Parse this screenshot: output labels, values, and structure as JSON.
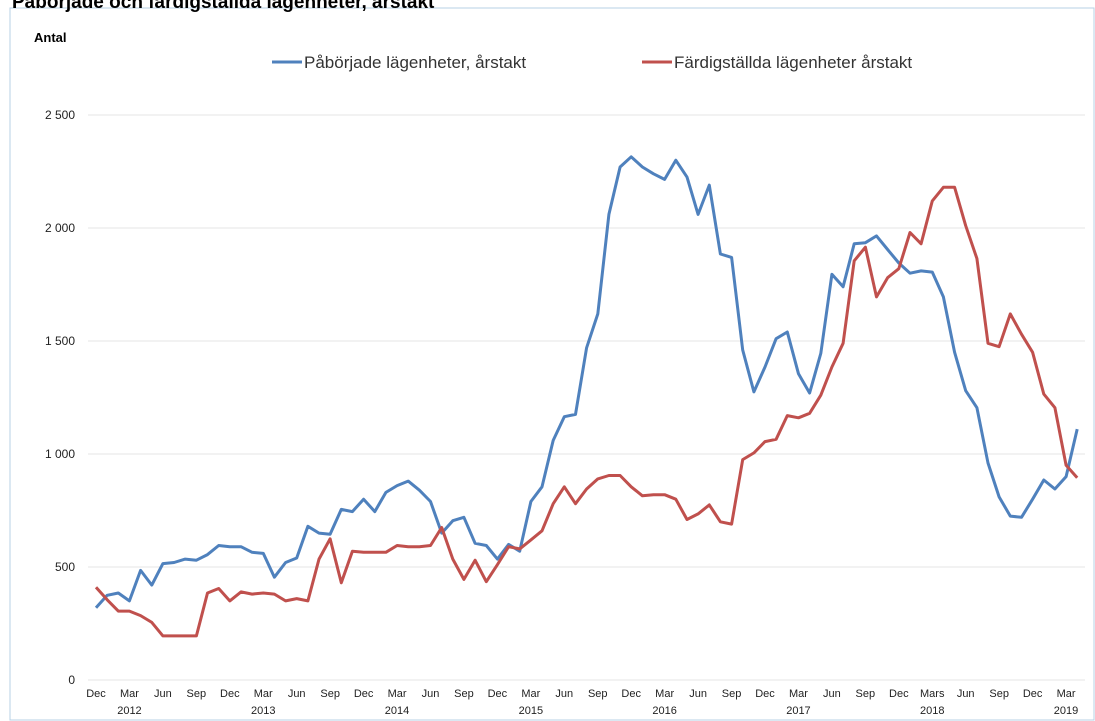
{
  "chart_data": {
    "type": "line",
    "title": "Påbörjade och färdigställda lägenheter, årstakt",
    "y_label": "Antal",
    "categories": [
      "Dec",
      null,
      null,
      "Mar",
      null,
      null,
      "Jun",
      null,
      null,
      "Sep",
      null,
      null,
      "Dec",
      null,
      null,
      "Mar",
      null,
      null,
      "Jun",
      null,
      null,
      "Sep",
      null,
      null,
      "Dec",
      null,
      null,
      "Mar",
      null,
      null,
      "Jun",
      null,
      null,
      "Sep",
      null,
      null,
      "Dec",
      null,
      null,
      "Mar",
      null,
      null,
      "Jun",
      null,
      null,
      "Sep",
      null,
      null,
      "Dec",
      null,
      null,
      "Mar",
      null,
      null,
      "Jun",
      null,
      null,
      "Sep",
      null,
      null,
      "Dec",
      null,
      null,
      "Mar",
      null,
      null,
      "Jun",
      null,
      null,
      "Sep",
      null,
      null,
      "Dec",
      null,
      null,
      "Mars",
      null,
      null,
      "Jun",
      null,
      null,
      "Sep",
      null,
      null,
      "Dec",
      null,
      null,
      "Mar",
      null
    ],
    "years": [
      "2012",
      "2013",
      "2014",
      "2015",
      "2016",
      "2017",
      "2018",
      "2019"
    ],
    "series": [
      {
        "name": "Påbörjade lägenheter, årstakt",
        "color": "#4f81bd",
        "values": [
          320,
          375,
          385,
          350,
          485,
          420,
          515,
          520,
          535,
          530,
          555,
          595,
          590,
          590,
          565,
          560,
          455,
          520,
          540,
          680,
          650,
          645,
          755,
          745,
          800,
          745,
          830,
          860,
          880,
          840,
          790,
          650,
          705,
          720,
          605,
          595,
          535,
          600,
          570,
          790,
          855,
          1060,
          1165,
          1175,
          1470,
          1620,
          2060,
          2270,
          2315,
          2270,
          2240,
          2215,
          2300,
          2225,
          2060,
          2190,
          1885,
          1870,
          1460,
          1275,
          1385,
          1510,
          1540,
          1355,
          1270,
          1445,
          1795,
          1740,
          1930,
          1935,
          1965,
          1905,
          1845,
          1800,
          1810,
          1805,
          1695,
          1450,
          1280,
          1205,
          960,
          810,
          725,
          720,
          800,
          885,
          845,
          900,
          1110
        ]
      },
      {
        "name": "Färdigställda lägenheter årstakt",
        "color": "#c0504d",
        "values": [
          410,
          355,
          305,
          305,
          285,
          255,
          195,
          195,
          195,
          195,
          385,
          405,
          350,
          390,
          380,
          385,
          380,
          350,
          360,
          350,
          535,
          625,
          430,
          570,
          565,
          565,
          565,
          595,
          590,
          590,
          595,
          675,
          535,
          445,
          530,
          435,
          510,
          590,
          580,
          620,
          660,
          780,
          855,
          780,
          845,
          890,
          905,
          905,
          855,
          815,
          820,
          820,
          800,
          710,
          735,
          775,
          700,
          690,
          975,
          1005,
          1055,
          1065,
          1170,
          1160,
          1180,
          1260,
          1385,
          1490,
          1855,
          1915,
          1695,
          1780,
          1820,
          1980,
          1930,
          2120,
          2180,
          2180,
          2010,
          1865,
          1490,
          1475,
          1620,
          1530,
          1450,
          1265,
          1205,
          950,
          895
        ]
      }
    ],
    "ylim": [
      0,
      3000
    ],
    "yticks": [
      0,
      500,
      {
        "value": 1000,
        "label": "1 000"
      },
      {
        "value": 1500,
        "label": "1 500"
      },
      {
        "value": 2000,
        "label": "2 000"
      },
      {
        "value": 2500,
        "label": "2 500"
      }
    ],
    "grid": true,
    "legend": "top"
  }
}
